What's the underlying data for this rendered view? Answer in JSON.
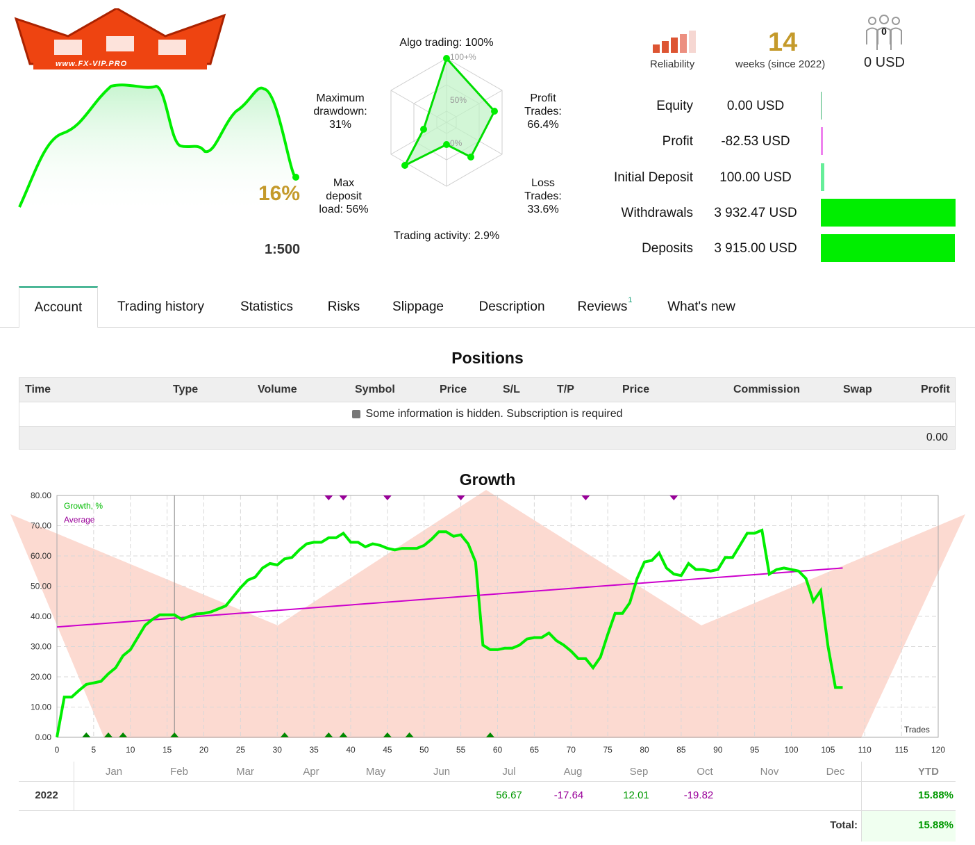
{
  "header": {
    "logo_text": "www.FX-VIP.PRO",
    "mini_growth_pct": "16%",
    "leverage": "1:500",
    "reliability_label": "Reliability",
    "weeks_value": "14",
    "weeks_label": "weeks (since 2022)",
    "subscribers_count": "0",
    "subscribers_usd": "0 USD",
    "reliability_level": 3
  },
  "radar": {
    "algo": "Algo trading: 100%",
    "profit_l1": "Profit",
    "profit_l2": "Trades:",
    "profit_l3": "66.4%",
    "loss_l1": "Loss",
    "loss_l2": "Trades:",
    "loss_l3": "33.6%",
    "activity": "Trading activity: 2.9%",
    "load_l1": "Max",
    "load_l2": "deposit",
    "load_l3": "load: 56%",
    "dd_l1": "Maximum",
    "dd_l2": "drawdown:",
    "dd_l3": "31%",
    "scale_100": "100+%",
    "scale_50": "50%",
    "scale_0": "0%",
    "values": [
      100,
      66.4,
      33.6,
      2.9,
      56,
      31
    ]
  },
  "stats": [
    {
      "label": "Equity",
      "value": "0.00 USD",
      "bar_color": "#3cb371",
      "bar_fraction": 0.0
    },
    {
      "label": "Profit",
      "value": "-82.53 USD",
      "bar_color": "#ee82ee",
      "bar_fraction": 0.0
    },
    {
      "label": "Initial Deposit",
      "value": "100.00 USD",
      "bar_color": "#66ee99",
      "bar_fraction": 0.03
    },
    {
      "label": "Withdrawals",
      "value": "3 932.47 USD",
      "bar_color": "#00ee00",
      "bar_fraction": 1.0
    },
    {
      "label": "Deposits",
      "value": "3 915.00 USD",
      "bar_color": "#00ee00",
      "bar_fraction": 0.996
    }
  ],
  "tabs": [
    {
      "label": "Account",
      "active": true
    },
    {
      "label": "Trading history"
    },
    {
      "label": "Statistics"
    },
    {
      "label": "Risks"
    },
    {
      "label": "Slippage"
    },
    {
      "label": "Description"
    },
    {
      "label": "Reviews",
      "badge": "1"
    },
    {
      "label": "What's new"
    }
  ],
  "positions": {
    "title": "Positions",
    "columns": [
      "Time",
      "Type",
      "Volume",
      "Symbol",
      "Price",
      "S/L",
      "T/P",
      "Price",
      "Commission",
      "Swap",
      "Profit"
    ],
    "hidden_message": "Some information is hidden. Subscription is required",
    "total": "0.00"
  },
  "growth": {
    "title": "Growth",
    "legend_growth": "Growth, %",
    "legend_average": "Average",
    "x_label": "Trades",
    "growth_color": "#00ee00",
    "average_color": "#cc00cc"
  },
  "chart_data": {
    "type": "line",
    "title": "Growth",
    "xlabel": "Trades",
    "ylabel": "",
    "xlim": [
      0,
      120
    ],
    "ylim": [
      0,
      80
    ],
    "x_ticks": [
      0,
      5,
      10,
      15,
      20,
      25,
      30,
      35,
      40,
      45,
      50,
      55,
      60,
      65,
      70,
      75,
      80,
      85,
      90,
      95,
      100,
      105,
      110,
      115,
      120
    ],
    "y_ticks": [
      "0.00",
      "10.00",
      "20.00",
      "30.00",
      "40.00",
      "50.00",
      "60.00",
      "70.00",
      "80.00"
    ],
    "grid": true,
    "legend": "top-left",
    "series": [
      {
        "name": "Growth, %",
        "x": [
          0,
          1,
          2,
          3,
          4,
          5,
          6,
          7,
          8,
          9,
          10,
          11,
          12,
          13,
          14,
          15,
          16,
          17,
          18,
          19,
          20,
          21,
          22,
          23,
          24,
          25,
          26,
          27,
          28,
          29,
          30,
          31,
          32,
          33,
          34,
          35,
          36,
          37,
          38,
          39,
          40,
          41,
          42,
          43,
          44,
          45,
          46,
          47,
          48,
          49,
          50,
          51,
          52,
          53,
          54,
          55,
          56,
          57,
          58,
          59,
          60,
          61,
          62,
          63,
          64,
          65,
          66,
          67,
          68,
          69,
          70,
          71,
          72,
          73,
          74,
          75,
          76,
          77,
          78,
          79,
          80,
          81,
          82,
          83,
          84,
          85,
          86,
          87,
          88,
          89,
          90,
          91,
          92,
          93,
          94,
          95,
          96,
          97,
          98,
          99,
          100,
          101,
          102,
          103,
          104,
          105,
          106,
          107
        ],
        "values": [
          0,
          13.3,
          13.3,
          15.5,
          17.5,
          18,
          18.5,
          21,
          23,
          27,
          29,
          33,
          37,
          39,
          40.5,
          40.5,
          40.5,
          39,
          40,
          40.8,
          41,
          41.5,
          42.5,
          43.5,
          46.5,
          49.5,
          52,
          53,
          56,
          57.5,
          57,
          59,
          59.5,
          62,
          64,
          64.5,
          64.5,
          66,
          66,
          67.5,
          64.5,
          64.5,
          63,
          64,
          63.5,
          62.5,
          62,
          62.5,
          62.5,
          62.5,
          63.5,
          65.5,
          68,
          68,
          66.5,
          67,
          64,
          58,
          30.5,
          29,
          29,
          29.5,
          29.5,
          30.5,
          32.5,
          33,
          33,
          34.5,
          32,
          30.5,
          28.5,
          26,
          26,
          23,
          26.5,
          34,
          41,
          41,
          44.5,
          52.5,
          58,
          58.5,
          61,
          56,
          54,
          53.5,
          57.5,
          55.5,
          55.5,
          55,
          55.5,
          59.5,
          59.5,
          63.5,
          67.5,
          67.5,
          68.5,
          54,
          55.5,
          56,
          55.5,
          55,
          52.5,
          45,
          48.5,
          30,
          16.5,
          16.5
        ]
      },
      {
        "name": "Average",
        "x": [
          0,
          107
        ],
        "values": [
          36.5,
          56
        ]
      }
    ],
    "deposit_markers_x": [
      4,
      7,
      9,
      16,
      31,
      37,
      39,
      45,
      48,
      59
    ],
    "withdrawal_markers_x": [
      37,
      39,
      45,
      55,
      72,
      84
    ]
  },
  "yearly": {
    "months": [
      "Jan",
      "Feb",
      "Mar",
      "Apr",
      "May",
      "Jun",
      "Jul",
      "Aug",
      "Sep",
      "Oct",
      "Nov",
      "Dec"
    ],
    "ytd_label": "YTD",
    "year": "2022",
    "values": [
      "",
      "",
      "",
      "",
      "",
      "",
      "56.67",
      "-17.64",
      "12.01",
      "-19.82",
      "",
      ""
    ],
    "ytd_value": "15.88%",
    "total_label": "Total:",
    "total_value": "15.88%"
  }
}
